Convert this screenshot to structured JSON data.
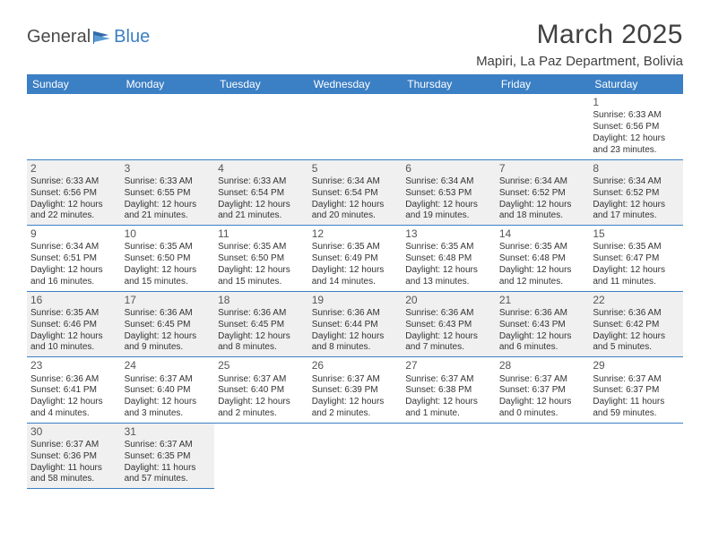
{
  "logo": {
    "word1": "General",
    "word2": "Blue"
  },
  "title": "March 2025",
  "location": "Mapiri, La Paz Department, Bolivia",
  "day_headers": [
    "Sunday",
    "Monday",
    "Tuesday",
    "Wednesday",
    "Thursday",
    "Friday",
    "Saturday"
  ],
  "colors": {
    "header_bg": "#3b7fc4",
    "header_text": "#ffffff",
    "border": "#3b7fc4",
    "shaded": "#f0f0f0",
    "text": "#333333"
  },
  "weeks": [
    [
      {
        "day": "",
        "sunrise": "",
        "sunset": "",
        "daylight": "",
        "empty": true
      },
      {
        "day": "",
        "sunrise": "",
        "sunset": "",
        "daylight": "",
        "empty": true
      },
      {
        "day": "",
        "sunrise": "",
        "sunset": "",
        "daylight": "",
        "empty": true
      },
      {
        "day": "",
        "sunrise": "",
        "sunset": "",
        "daylight": "",
        "empty": true
      },
      {
        "day": "",
        "sunrise": "",
        "sunset": "",
        "daylight": "",
        "empty": true
      },
      {
        "day": "",
        "sunrise": "",
        "sunset": "",
        "daylight": "",
        "empty": true
      },
      {
        "day": "1",
        "sunrise": "Sunrise: 6:33 AM",
        "sunset": "Sunset: 6:56 PM",
        "daylight": "Daylight: 12 hours and 23 minutes.",
        "empty": false
      }
    ],
    [
      {
        "day": "2",
        "sunrise": "Sunrise: 6:33 AM",
        "sunset": "Sunset: 6:56 PM",
        "daylight": "Daylight: 12 hours and 22 minutes.",
        "empty": false,
        "shaded": true
      },
      {
        "day": "3",
        "sunrise": "Sunrise: 6:33 AM",
        "sunset": "Sunset: 6:55 PM",
        "daylight": "Daylight: 12 hours and 21 minutes.",
        "empty": false,
        "shaded": true
      },
      {
        "day": "4",
        "sunrise": "Sunrise: 6:33 AM",
        "sunset": "Sunset: 6:54 PM",
        "daylight": "Daylight: 12 hours and 21 minutes.",
        "empty": false,
        "shaded": true
      },
      {
        "day": "5",
        "sunrise": "Sunrise: 6:34 AM",
        "sunset": "Sunset: 6:54 PM",
        "daylight": "Daylight: 12 hours and 20 minutes.",
        "empty": false,
        "shaded": true
      },
      {
        "day": "6",
        "sunrise": "Sunrise: 6:34 AM",
        "sunset": "Sunset: 6:53 PM",
        "daylight": "Daylight: 12 hours and 19 minutes.",
        "empty": false,
        "shaded": true
      },
      {
        "day": "7",
        "sunrise": "Sunrise: 6:34 AM",
        "sunset": "Sunset: 6:52 PM",
        "daylight": "Daylight: 12 hours and 18 minutes.",
        "empty": false,
        "shaded": true
      },
      {
        "day": "8",
        "sunrise": "Sunrise: 6:34 AM",
        "sunset": "Sunset: 6:52 PM",
        "daylight": "Daylight: 12 hours and 17 minutes.",
        "empty": false,
        "shaded": true
      }
    ],
    [
      {
        "day": "9",
        "sunrise": "Sunrise: 6:34 AM",
        "sunset": "Sunset: 6:51 PM",
        "daylight": "Daylight: 12 hours and 16 minutes.",
        "empty": false
      },
      {
        "day": "10",
        "sunrise": "Sunrise: 6:35 AM",
        "sunset": "Sunset: 6:50 PM",
        "daylight": "Daylight: 12 hours and 15 minutes.",
        "empty": false
      },
      {
        "day": "11",
        "sunrise": "Sunrise: 6:35 AM",
        "sunset": "Sunset: 6:50 PM",
        "daylight": "Daylight: 12 hours and 15 minutes.",
        "empty": false
      },
      {
        "day": "12",
        "sunrise": "Sunrise: 6:35 AM",
        "sunset": "Sunset: 6:49 PM",
        "daylight": "Daylight: 12 hours and 14 minutes.",
        "empty": false
      },
      {
        "day": "13",
        "sunrise": "Sunrise: 6:35 AM",
        "sunset": "Sunset: 6:48 PM",
        "daylight": "Daylight: 12 hours and 13 minutes.",
        "empty": false
      },
      {
        "day": "14",
        "sunrise": "Sunrise: 6:35 AM",
        "sunset": "Sunset: 6:48 PM",
        "daylight": "Daylight: 12 hours and 12 minutes.",
        "empty": false
      },
      {
        "day": "15",
        "sunrise": "Sunrise: 6:35 AM",
        "sunset": "Sunset: 6:47 PM",
        "daylight": "Daylight: 12 hours and 11 minutes.",
        "empty": false
      }
    ],
    [
      {
        "day": "16",
        "sunrise": "Sunrise: 6:35 AM",
        "sunset": "Sunset: 6:46 PM",
        "daylight": "Daylight: 12 hours and 10 minutes.",
        "empty": false,
        "shaded": true
      },
      {
        "day": "17",
        "sunrise": "Sunrise: 6:36 AM",
        "sunset": "Sunset: 6:45 PM",
        "daylight": "Daylight: 12 hours and 9 minutes.",
        "empty": false,
        "shaded": true
      },
      {
        "day": "18",
        "sunrise": "Sunrise: 6:36 AM",
        "sunset": "Sunset: 6:45 PM",
        "daylight": "Daylight: 12 hours and 8 minutes.",
        "empty": false,
        "shaded": true
      },
      {
        "day": "19",
        "sunrise": "Sunrise: 6:36 AM",
        "sunset": "Sunset: 6:44 PM",
        "daylight": "Daylight: 12 hours and 8 minutes.",
        "empty": false,
        "shaded": true
      },
      {
        "day": "20",
        "sunrise": "Sunrise: 6:36 AM",
        "sunset": "Sunset: 6:43 PM",
        "daylight": "Daylight: 12 hours and 7 minutes.",
        "empty": false,
        "shaded": true
      },
      {
        "day": "21",
        "sunrise": "Sunrise: 6:36 AM",
        "sunset": "Sunset: 6:43 PM",
        "daylight": "Daylight: 12 hours and 6 minutes.",
        "empty": false,
        "shaded": true
      },
      {
        "day": "22",
        "sunrise": "Sunrise: 6:36 AM",
        "sunset": "Sunset: 6:42 PM",
        "daylight": "Daylight: 12 hours and 5 minutes.",
        "empty": false,
        "shaded": true
      }
    ],
    [
      {
        "day": "23",
        "sunrise": "Sunrise: 6:36 AM",
        "sunset": "Sunset: 6:41 PM",
        "daylight": "Daylight: 12 hours and 4 minutes.",
        "empty": false
      },
      {
        "day": "24",
        "sunrise": "Sunrise: 6:37 AM",
        "sunset": "Sunset: 6:40 PM",
        "daylight": "Daylight: 12 hours and 3 minutes.",
        "empty": false
      },
      {
        "day": "25",
        "sunrise": "Sunrise: 6:37 AM",
        "sunset": "Sunset: 6:40 PM",
        "daylight": "Daylight: 12 hours and 2 minutes.",
        "empty": false
      },
      {
        "day": "26",
        "sunrise": "Sunrise: 6:37 AM",
        "sunset": "Sunset: 6:39 PM",
        "daylight": "Daylight: 12 hours and 2 minutes.",
        "empty": false
      },
      {
        "day": "27",
        "sunrise": "Sunrise: 6:37 AM",
        "sunset": "Sunset: 6:38 PM",
        "daylight": "Daylight: 12 hours and 1 minute.",
        "empty": false
      },
      {
        "day": "28",
        "sunrise": "Sunrise: 6:37 AM",
        "sunset": "Sunset: 6:37 PM",
        "daylight": "Daylight: 12 hours and 0 minutes.",
        "empty": false
      },
      {
        "day": "29",
        "sunrise": "Sunrise: 6:37 AM",
        "sunset": "Sunset: 6:37 PM",
        "daylight": "Daylight: 11 hours and 59 minutes.",
        "empty": false
      }
    ],
    [
      {
        "day": "30",
        "sunrise": "Sunrise: 6:37 AM",
        "sunset": "Sunset: 6:36 PM",
        "daylight": "Daylight: 11 hours and 58 minutes.",
        "empty": false,
        "shaded": true
      },
      {
        "day": "31",
        "sunrise": "Sunrise: 6:37 AM",
        "sunset": "Sunset: 6:35 PM",
        "daylight": "Daylight: 11 hours and 57 minutes.",
        "empty": false,
        "shaded": true
      },
      {
        "day": "",
        "sunrise": "",
        "sunset": "",
        "daylight": "",
        "empty": true,
        "noborder": true
      },
      {
        "day": "",
        "sunrise": "",
        "sunset": "",
        "daylight": "",
        "empty": true,
        "noborder": true
      },
      {
        "day": "",
        "sunrise": "",
        "sunset": "",
        "daylight": "",
        "empty": true,
        "noborder": true
      },
      {
        "day": "",
        "sunrise": "",
        "sunset": "",
        "daylight": "",
        "empty": true,
        "noborder": true
      },
      {
        "day": "",
        "sunrise": "",
        "sunset": "",
        "daylight": "",
        "empty": true,
        "noborder": true
      }
    ]
  ]
}
